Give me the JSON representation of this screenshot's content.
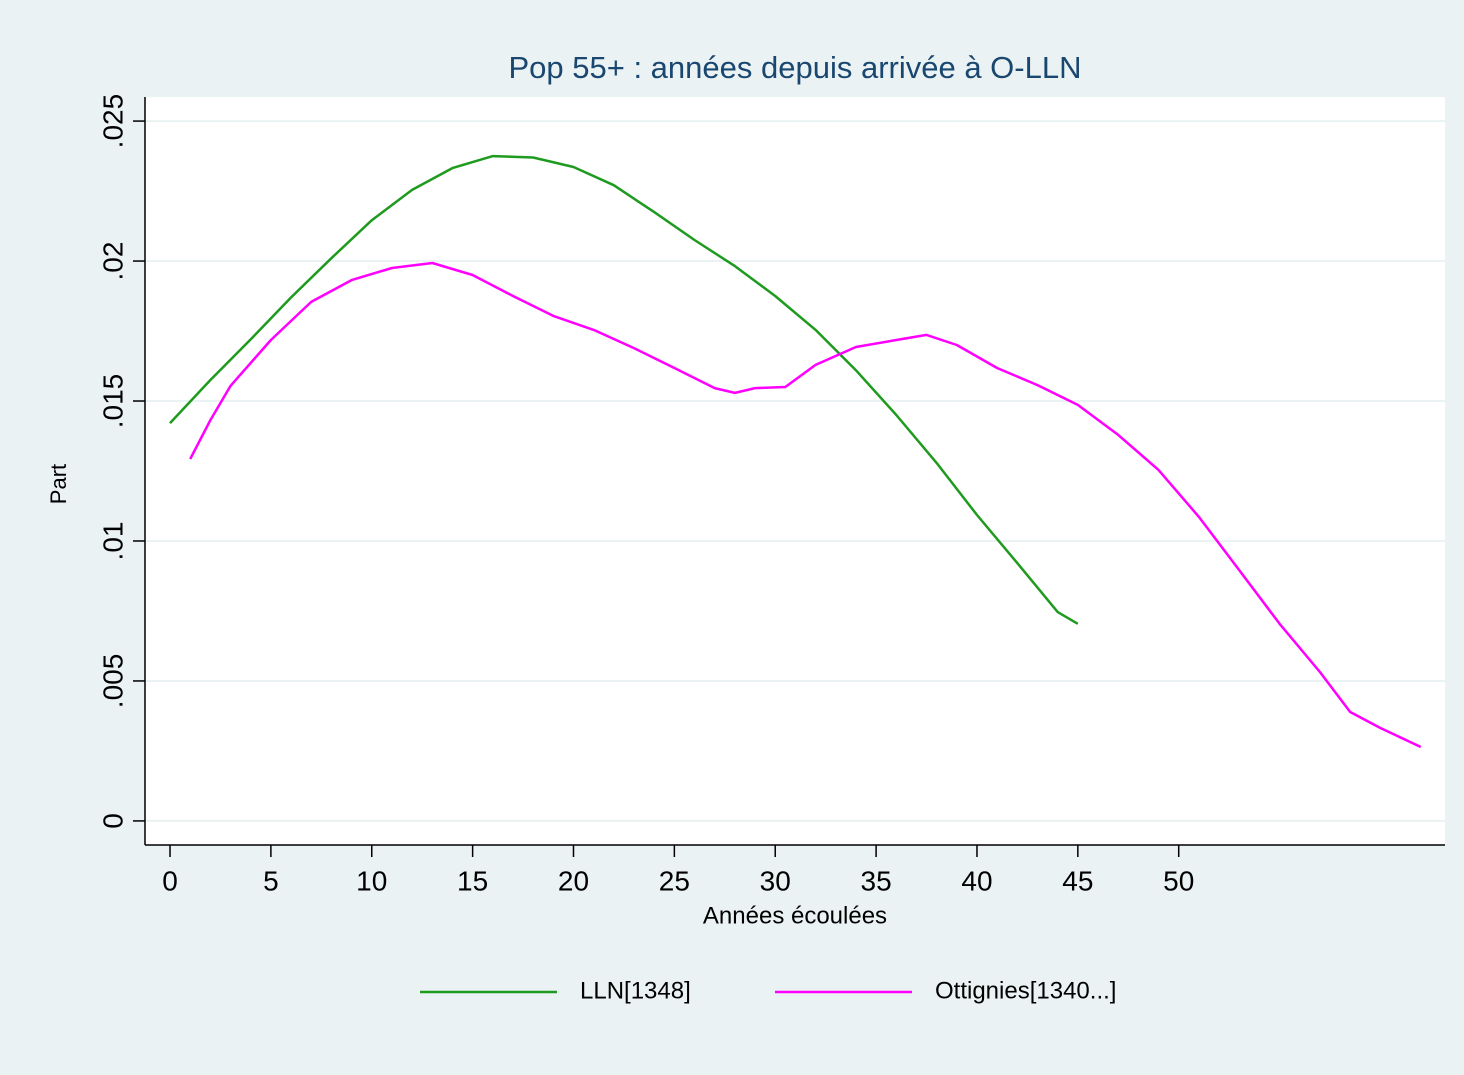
{
  "chart_data": {
    "type": "line",
    "title": "Pop 55+ : années depuis arrivée à O-LLN",
    "x_label": "Années écoulées",
    "y_label": "Part",
    "xlim": [
      -1.24,
      63.2
    ],
    "ylim": [
      -0.00086,
      0.02586
    ],
    "xticks": [
      0,
      5,
      10,
      15,
      20,
      25,
      30,
      35,
      40,
      45,
      50
    ],
    "yticks": [
      0,
      {
        "value": 0.005,
        "label": ".005"
      },
      {
        "value": 0.01,
        "label": ".01"
      },
      {
        "value": 0.015,
        "label": ".015"
      },
      {
        "value": 0.02,
        "label": ".02"
      },
      {
        "value": 0.025,
        "label": ".025"
      }
    ],
    "grid": true,
    "legend": "bottom",
    "series": [
      {
        "name": "LLN[1348]",
        "color": "#1e9b1e",
        "x": [
          0,
          2,
          4,
          6,
          8,
          10,
          12,
          14,
          16,
          18,
          20,
          22,
          24,
          26,
          28,
          30,
          32,
          34,
          36,
          38,
          40,
          42,
          44,
          45
        ],
        "values": [
          0.01421,
          0.01575,
          0.0172,
          0.0187,
          0.0201,
          0.02146,
          0.02254,
          0.02332,
          0.02375,
          0.0237,
          0.02336,
          0.02271,
          0.02175,
          0.02075,
          0.01982,
          0.01875,
          0.01754,
          0.0161,
          0.0145,
          0.01279,
          0.01093,
          0.00921,
          0.00746,
          0.00704
        ]
      },
      {
        "name": "Ottignies[1340...]",
        "color": "#ff00ff",
        "x": [
          1,
          2,
          3,
          5,
          7,
          9,
          11,
          13,
          15,
          17,
          19,
          21,
          23,
          25,
          27,
          28,
          29,
          30.5,
          32,
          34,
          36,
          37.5,
          39,
          41,
          43,
          45,
          47,
          49,
          51,
          53,
          55,
          57,
          58.5,
          60,
          62
        ],
        "values": [
          0.01293,
          0.01432,
          0.01554,
          0.01718,
          0.01854,
          0.01932,
          0.01975,
          0.01993,
          0.0195,
          0.01875,
          0.01804,
          0.01754,
          0.01689,
          0.01618,
          0.01546,
          0.01529,
          0.01546,
          0.0155,
          0.01629,
          0.01693,
          0.01718,
          0.01736,
          0.017,
          0.01618,
          0.01557,
          0.01486,
          0.01379,
          0.01254,
          0.01086,
          0.00896,
          0.00704,
          0.00532,
          0.00389,
          0.00332,
          0.00264
        ]
      }
    ]
  }
}
